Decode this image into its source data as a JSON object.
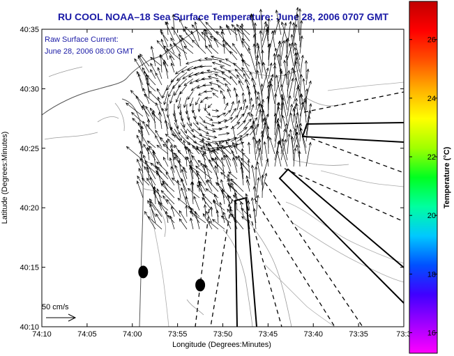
{
  "chart_data": {
    "type": "vector field map",
    "title": "RU COOL   NOAA–18  Sea Surface Temperature:  June 28, 2006 0707 GMT",
    "annotation": [
      "Raw Surface Current:",
      "June 28, 2006 08:00 GMT"
    ],
    "scale_label": "50 cm/s",
    "xlabel": "Longitude (Degrees:Minutes)",
    "ylabel": "Latitude (Degrees:Minutes)",
    "x_ticks": [
      "74:10",
      "74:05",
      "74:00",
      "73:55",
      "73:50",
      "73:45",
      "73:40",
      "73:35",
      "73:3"
    ],
    "y_ticks": [
      "40:35",
      "40:30",
      "40:25",
      "40:20",
      "40:15",
      "40:10"
    ],
    "xlim": [
      "74:10 W",
      "73:30 W"
    ],
    "ylim": [
      "40:10 N",
      "40:35 N"
    ],
    "colorbar": {
      "label": "Temperature (°C)",
      "ticks": [
        "26",
        "24",
        "22",
        "20",
        "18",
        "16"
      ],
      "range": [
        15.3,
        27.3
      ],
      "colors": [
        "#ff00ff",
        "#a000ff",
        "#4000ff",
        "#0050ff",
        "#00c8ff",
        "#00ffa0",
        "#00ff20",
        "#a0ff00",
        "#ffff00",
        "#ffb000",
        "#ff5000",
        "#ff0000",
        "#c00000"
      ]
    },
    "markers": [
      {
        "lon": "73:58.8",
        "lat": "40:14.6"
      },
      {
        "lon": "73:52.5",
        "lat": "40:13.5"
      }
    ]
  }
}
